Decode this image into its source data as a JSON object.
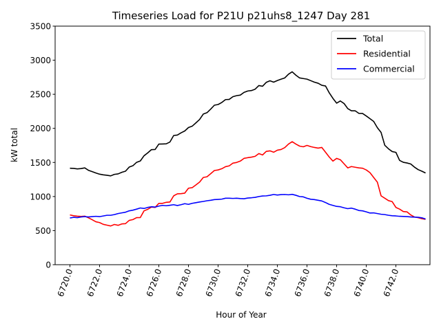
{
  "chart_data": {
    "type": "line",
    "title": "Timeseries Load for P21U p21uhs8_1247  Day 281",
    "xlabel": "Hour of Year",
    "ylabel": "kW total",
    "xlim": [
      6719.0,
      6744.3
    ],
    "ylim": [
      0,
      3500
    ],
    "xticks": [
      6720,
      6722,
      6724,
      6726,
      6728,
      6730,
      6732,
      6734,
      6736,
      6738,
      6740,
      6742
    ],
    "xtick_labels": [
      "6720.0",
      "6722.0",
      "6724.0",
      "6726.0",
      "6728.0",
      "6730.0",
      "6732.0",
      "6734.0",
      "6736.0",
      "6738.0",
      "6740.0",
      "6742.0"
    ],
    "yticks": [
      0,
      500,
      1000,
      1500,
      2000,
      2500,
      3000,
      3500
    ],
    "ytick_labels": [
      "0",
      "500",
      "1000",
      "1500",
      "2000",
      "2500",
      "3000",
      "3500"
    ],
    "legend_position": "top-right",
    "x_start": 6720.0,
    "x_step": 0.25,
    "series": [
      {
        "name": "Total",
        "color": "#000000",
        "values": [
          1415,
          1413,
          1405,
          1410,
          1420,
          1385,
          1365,
          1345,
          1328,
          1318,
          1312,
          1303,
          1325,
          1332,
          1355,
          1372,
          1432,
          1452,
          1502,
          1522,
          1598,
          1640,
          1688,
          1690,
          1770,
          1771,
          1773,
          1800,
          1895,
          1902,
          1935,
          1962,
          2012,
          2032,
          2080,
          2130,
          2210,
          2230,
          2283,
          2340,
          2350,
          2380,
          2422,
          2425,
          2465,
          2480,
          2488,
          2528,
          2548,
          2555,
          2575,
          2628,
          2618,
          2675,
          2698,
          2678,
          2702,
          2722,
          2740,
          2795,
          2830,
          2780,
          2740,
          2731,
          2722,
          2700,
          2678,
          2662,
          2632,
          2622,
          2522,
          2440,
          2370,
          2402,
          2365,
          2290,
          2258,
          2258,
          2220,
          2218,
          2182,
          2142,
          2102,
          2010,
          1940,
          1752,
          1700,
          1660,
          1648,
          1530,
          1502,
          1492,
          1478,
          1432,
          1395,
          1372,
          1345
        ]
      },
      {
        "name": "Residential",
        "color": "#ff0000",
        "values": [
          730,
          718,
          712,
          708,
          712,
          688,
          660,
          630,
          618,
          592,
          580,
          568,
          590,
          578,
          598,
          602,
          650,
          662,
          690,
          692,
          790,
          812,
          845,
          840,
          900,
          900,
          915,
          920,
          1010,
          1040,
          1042,
          1050,
          1122,
          1130,
          1170,
          1212,
          1280,
          1290,
          1335,
          1382,
          1390,
          1408,
          1438,
          1450,
          1490,
          1500,
          1520,
          1560,
          1570,
          1578,
          1590,
          1630,
          1610,
          1662,
          1670,
          1650,
          1680,
          1690,
          1718,
          1770,
          1805,
          1770,
          1740,
          1730,
          1750,
          1732,
          1720,
          1710,
          1720,
          1650,
          1580,
          1520,
          1560,
          1540,
          1480,
          1420,
          1440,
          1430,
          1420,
          1415,
          1390,
          1350,
          1280,
          1210,
          1010,
          975,
          940,
          925,
          840,
          815,
          780,
          775,
          730,
          700,
          690,
          675,
          665
        ]
      },
      {
        "name": "Commercial",
        "color": "#0000ff",
        "values": [
          685,
          695,
          690,
          700,
          705,
          700,
          705,
          710,
          705,
          715,
          725,
          725,
          735,
          750,
          760,
          770,
          790,
          800,
          815,
          832,
          825,
          840,
          850,
          845,
          860,
          870,
          865,
          872,
          880,
          868,
          880,
          895,
          885,
          900,
          910,
          920,
          928,
          938,
          945,
          955,
          958,
          962,
          975,
          975,
          972,
          975,
          970,
          968,
          978,
          982,
          988,
          1000,
          1008,
          1010,
          1018,
          1030,
          1022,
          1028,
          1030,
          1025,
          1032,
          1018,
          1000,
          995,
          975,
          960,
          955,
          945,
          935,
          912,
          885,
          870,
          855,
          850,
          835,
          822,
          830,
          815,
          795,
          790,
          775,
          758,
          760,
          750,
          740,
          735,
          725,
          718,
          715,
          710,
          708,
          705,
          700,
          698,
          695,
          688,
          670
        ]
      }
    ]
  }
}
